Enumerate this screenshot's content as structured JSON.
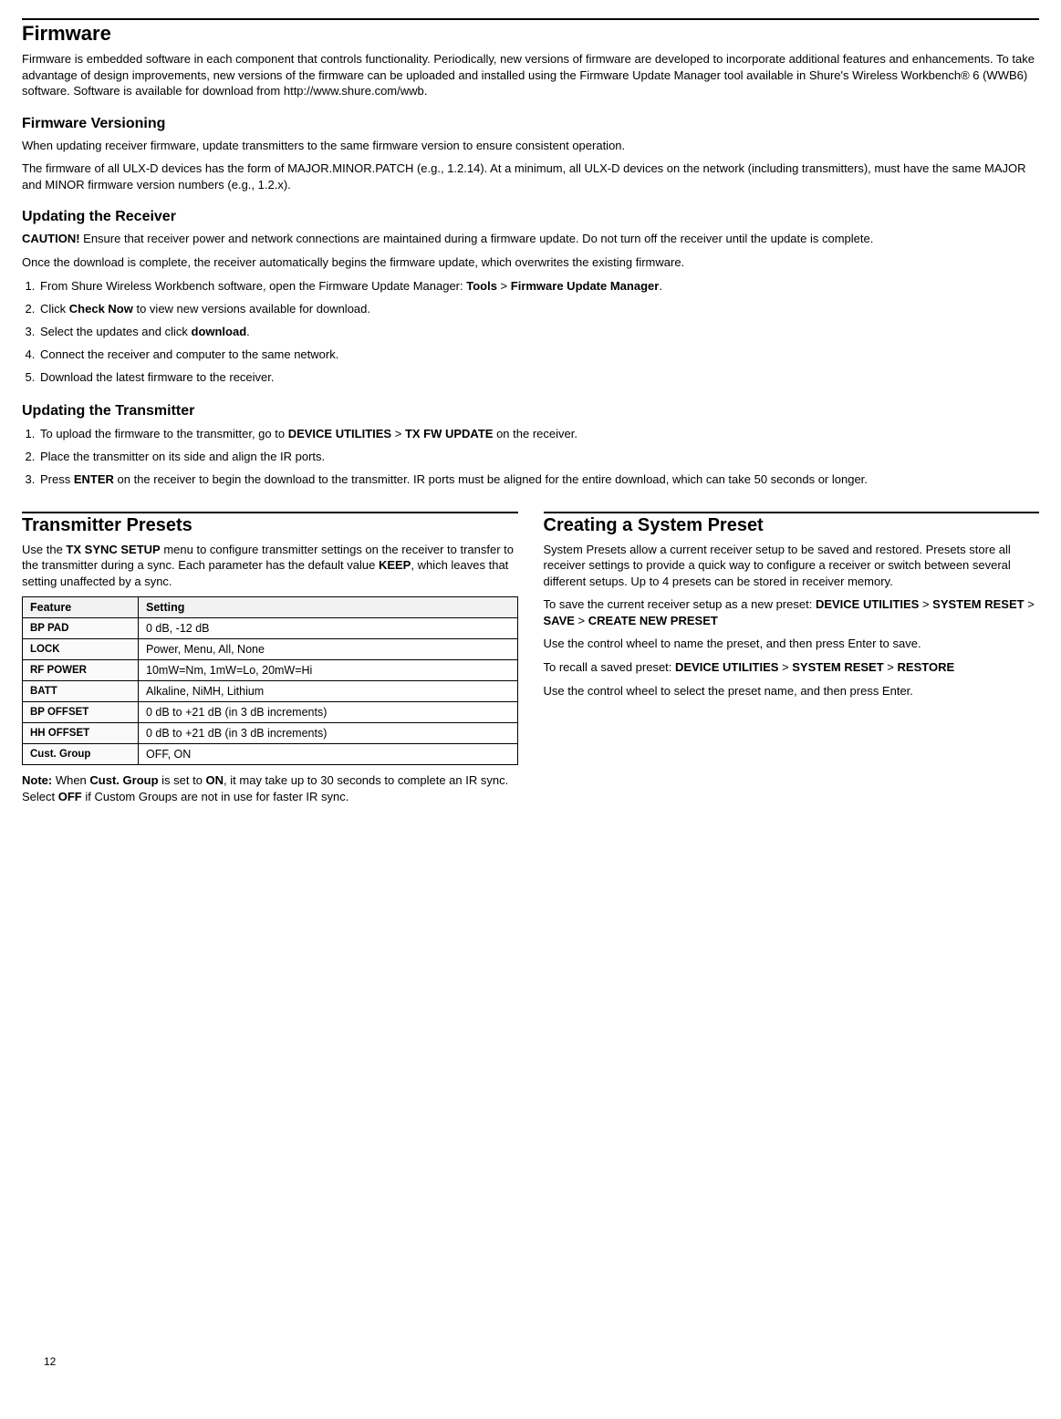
{
  "firmware": {
    "title": "Firmware",
    "intro": "Firmware is embedded software in each component that controls functionality. Periodically, new versions of firmware are developed to incorporate additional features and enhancements. To take advantage of design improvements, new versions of the firmware can be uploaded and installed using the Firmware Update Manager tool available in Shure's Wireless Workbench® 6 (WWB6) software. Software is available for download from http://www.shure.com/wwb."
  },
  "versioning": {
    "title": "Firmware Versioning",
    "p1": "When updating receiver firmware, update transmitters to the same firmware version to ensure consistent operation.",
    "p2": "The firmware of all ULX-D devices has the form of MAJOR.MINOR.PATCH (e.g., 1.2.14). At a minimum, all ULX-D devices on the network (including transmitters), must have the same MAJOR and MINOR firmware version numbers (e.g., 1.2.x)."
  },
  "receiver": {
    "title": "Updating the Receiver",
    "caution_label": "CAUTION!",
    "caution": " Ensure that receiver power and network connections are maintained during a firmware update. Do not turn off the receiver until the update is complete.",
    "p2": "Once the download is complete, the receiver automatically begins the firmware update, which overwrites the existing firmware.",
    "step1_a": "From Shure Wireless Workbench software, open the Firmware Update Manager: ",
    "step1_tools": "Tools",
    "step1_gt": " > ",
    "step1_fum": "Firmware Update Manager",
    "step1_end": ".",
    "step2_a": "Click ",
    "step2_b": "Check Now",
    "step2_c": " to view new versions available for download.",
    "step3_a": "Select the updates and click ",
    "step3_b": "download",
    "step3_c": ".",
    "step4": "Connect the receiver and computer to the same network.",
    "step5": "Download the latest firmware to the receiver."
  },
  "transmitter": {
    "title": "Updating the Transmitter",
    "step1_a": "To upload the firmware to the transmitter, go to ",
    "step1_b": "DEVICE UTILITIES",
    "step1_gt": " > ",
    "step1_c": "TX FW UPDATE",
    "step1_d": " on the receiver.",
    "step2": "Place the transmitter on its side and align the IR ports.",
    "step3_a": "Press ",
    "step3_b": "ENTER",
    "step3_c": " on the receiver to begin the download to the transmitter. IR ports must be aligned for the entire download, which can take 50 seconds or longer."
  },
  "presets": {
    "title": "Transmitter Presets",
    "intro_a": "Use the ",
    "intro_b": "TX SYNC SETUP",
    "intro_c": " menu to configure transmitter settings on the receiver to transfer to the transmitter during a sync. Each parameter has the default value ",
    "intro_d": "KEEP",
    "intro_e": ", which leaves that setting unaffected by a sync.",
    "th1": "Feature",
    "th2": "Setting",
    "rows": [
      {
        "f": "BP PAD",
        "s": "0 dB, -12 dB"
      },
      {
        "f": "LOCK",
        "s": "Power, Menu, All, None"
      },
      {
        "f": "RF POWER",
        "s": "10mW=Nm, 1mW=Lo, 20mW=Hi"
      },
      {
        "f": "BATT",
        "s": "Alkaline, NiMH, Lithium"
      },
      {
        "f": "BP OFFSET",
        "s": "0 dB to +21 dB (in 3 dB increments)"
      },
      {
        "f": "HH OFFSET",
        "s": "0 dB to +21 dB (in 3 dB increments)"
      },
      {
        "f": "Cust. Group",
        "s": "OFF, ON"
      }
    ],
    "note_label": "Note:",
    "note_a": " When ",
    "note_b": "Cust. Group",
    "note_c": " is set to ",
    "note_d": "ON",
    "note_e": ", it may take up to 30 seconds to complete an IR sync. Select ",
    "note_f": "OFF",
    "note_g": " if Custom Groups are not in use for faster IR sync."
  },
  "syspreset": {
    "title": "Creating a System Preset",
    "p1": "System Presets allow a current receiver setup to be saved and restored. Presets store all receiver settings to provide a quick way to configure a receiver or switch between several different setups. Up to 4 presets can be stored in receiver memory.",
    "p2_a": "To save the current receiver setup as a new preset: ",
    "p2_b": "DEVICE UTILITIES",
    "p2_c": " > ",
    "p2_d": "SYSTEM RESET",
    "p2_e": " > ",
    "p2_f": "SAVE",
    "p2_g": " > ",
    "p2_h": "CREATE NEW PRESET",
    "p3": "Use the control wheel to name the preset, and then press Enter to save.",
    "p4_a": "To recall a saved preset: ",
    "p4_b": "DEVICE UTILITIES",
    "p4_c": " > ",
    "p4_d": "SYSTEM RESET",
    "p4_e": " > ",
    "p4_f": "RESTORE",
    "p5": "Use the control wheel to select the preset name, and then press Enter."
  },
  "pagenum": "12"
}
